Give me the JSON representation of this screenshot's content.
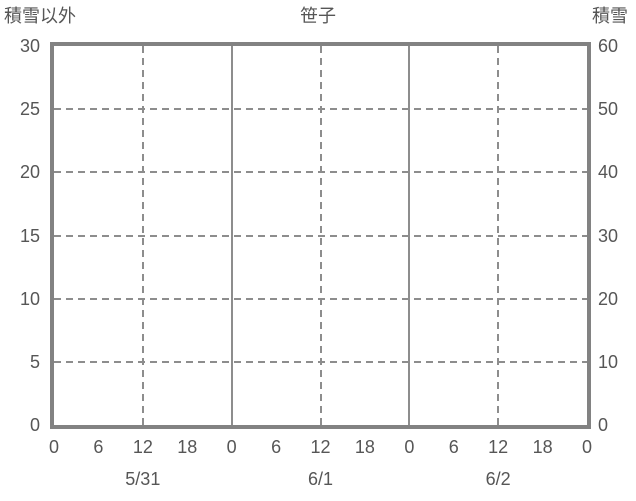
{
  "title": "笹子",
  "colors": {
    "text": "#565656",
    "border": "#828282",
    "grid": "#8d8d8d",
    "background": "#ffffff"
  },
  "chart_data": {
    "type": "line",
    "title": "笹子",
    "series": [],
    "left_axis": {
      "label": "積雪以外",
      "range": [
        0,
        30
      ],
      "ticks": [
        30,
        25,
        20,
        15,
        10,
        5,
        0
      ]
    },
    "right_axis": {
      "label": "積雪",
      "range": [
        0,
        60
      ],
      "ticks": [
        60,
        50,
        40,
        30,
        20,
        10,
        0
      ]
    },
    "x_axis": {
      "range_hours": [
        0,
        72
      ],
      "ticks": [
        {
          "hour": 0,
          "label": "0"
        },
        {
          "hour": 6,
          "label": "6"
        },
        {
          "hour": 12,
          "label": "12"
        },
        {
          "hour": 18,
          "label": "18"
        },
        {
          "hour": 24,
          "label": "0"
        },
        {
          "hour": 30,
          "label": "6"
        },
        {
          "hour": 36,
          "label": "12"
        },
        {
          "hour": 42,
          "label": "18"
        },
        {
          "hour": 48,
          "label": "0"
        },
        {
          "hour": 54,
          "label": "6"
        },
        {
          "hour": 60,
          "label": "12"
        },
        {
          "hour": 66,
          "label": "18"
        },
        {
          "hour": 72,
          "label": "0"
        }
      ],
      "dates": [
        {
          "hour": 12,
          "label": "5/31"
        },
        {
          "hour": 36,
          "label": "6/1"
        },
        {
          "hour": 60,
          "label": "6/2"
        }
      ]
    },
    "gridlines": {
      "horizontal_dashed_values": [
        25,
        20,
        15,
        10,
        5
      ],
      "vertical_dashed_hours": [
        12,
        36,
        60
      ],
      "vertical_solid_hours": [
        24,
        48
      ]
    },
    "legend": false,
    "grid": true
  }
}
